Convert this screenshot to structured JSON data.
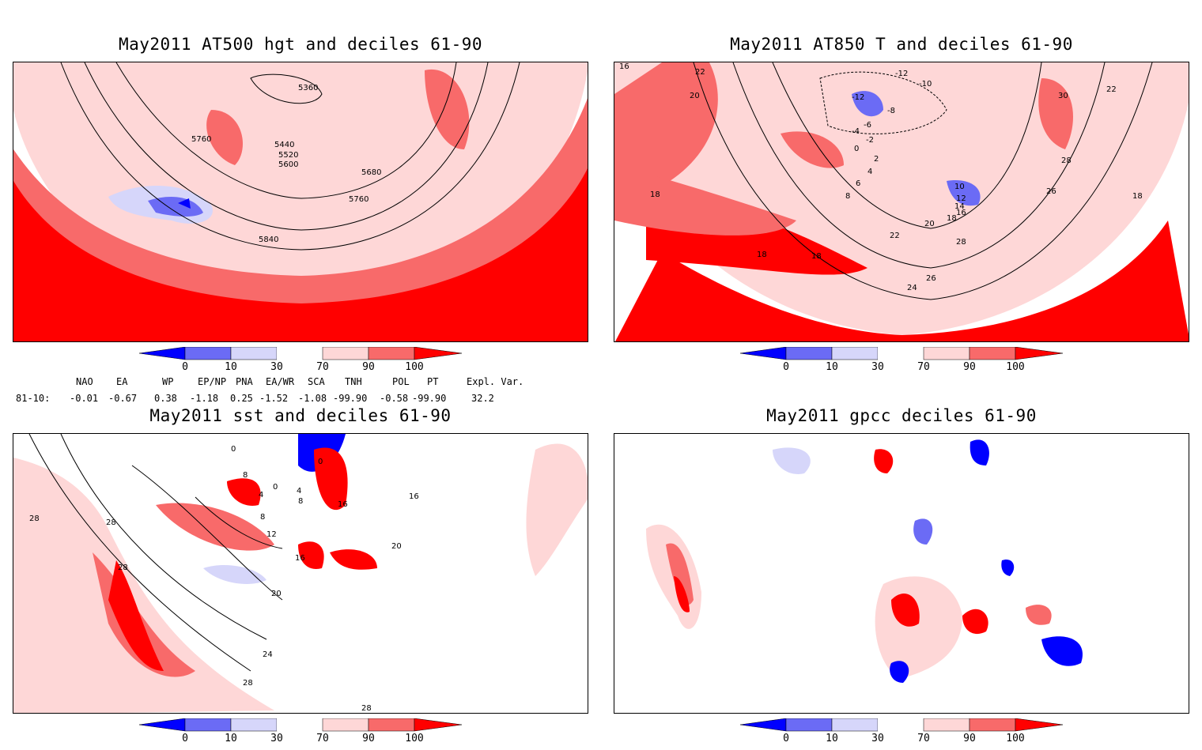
{
  "panels": [
    {
      "title": "May2011 AT500 hgt and deciles 61-90",
      "contour_labels": [
        "5360",
        "5440",
        "5520",
        "5600",
        "5680",
        "5760",
        "5760",
        "5840"
      ]
    },
    {
      "title": "May2011 AT850 T and deciles 61-90",
      "contour_labels": [
        "-12",
        "-10",
        "-12",
        "-8",
        "-6",
        "-4",
        "-2",
        "0",
        "2",
        "4",
        "6",
        "8",
        "10",
        "12",
        "14",
        "16",
        "18",
        "20",
        "22",
        "24",
        "26",
        "28",
        "30",
        "28",
        "26",
        "22",
        "18",
        "18",
        "18",
        "16",
        "20",
        "22",
        "18"
      ]
    },
    {
      "title": "May2011 sst and deciles 61-90",
      "contour_labels": [
        "0",
        "0",
        "0",
        "4",
        "4",
        "8",
        "8",
        "8",
        "12",
        "16",
        "16",
        "20",
        "20",
        "24",
        "28",
        "28",
        "28",
        "28",
        "28",
        "16"
      ]
    },
    {
      "title": "May2011 gpcc deciles 61-90",
      "contour_labels": []
    }
  ],
  "colorbar": {
    "labels": [
      "0",
      "10",
      "30",
      "70",
      "90",
      "100"
    ],
    "colors": [
      "#0000ff",
      "#6b6bf5",
      "#d6d6fa",
      "#ffffff",
      "#fed7d7",
      "#f86a6a",
      "#ff0000"
    ]
  },
  "indices": {
    "headers": [
      "NAO",
      "EA",
      "WP",
      "EP/NP",
      "PNA",
      "EA/WR",
      "SCA",
      "TNH",
      "POL",
      "PT",
      "Expl. Var."
    ],
    "row_label": "81-10:",
    "values": [
      "-0.01",
      "-0.67",
      "0.38",
      "-1.18",
      "0.25",
      "-1.52",
      "-1.08",
      "-99.90",
      "-0.58",
      "-99.90",
      "32.2"
    ]
  },
  "palette": {
    "land_border": "#2ec4c4",
    "strong_positive": "#ff0000",
    "moderate_positive": "#f86a6a",
    "light_positive": "#fed7d7",
    "light_negative": "#d6d6fa",
    "moderate_negative": "#6b6bf5",
    "strong_negative": "#0000ff"
  }
}
